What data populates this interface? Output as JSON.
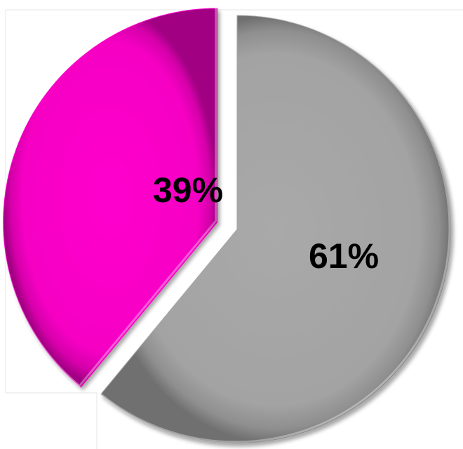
{
  "chart_data": {
    "type": "pie",
    "slices": [
      {
        "label": "61%",
        "value": 61,
        "color": "#a6a6a6"
      },
      {
        "label": "39%",
        "value": 39,
        "color": "#ff00cc"
      }
    ],
    "start_angle_deg": 0,
    "direction": "clockwise",
    "exploded_slice_index": 1,
    "legend": "none"
  }
}
